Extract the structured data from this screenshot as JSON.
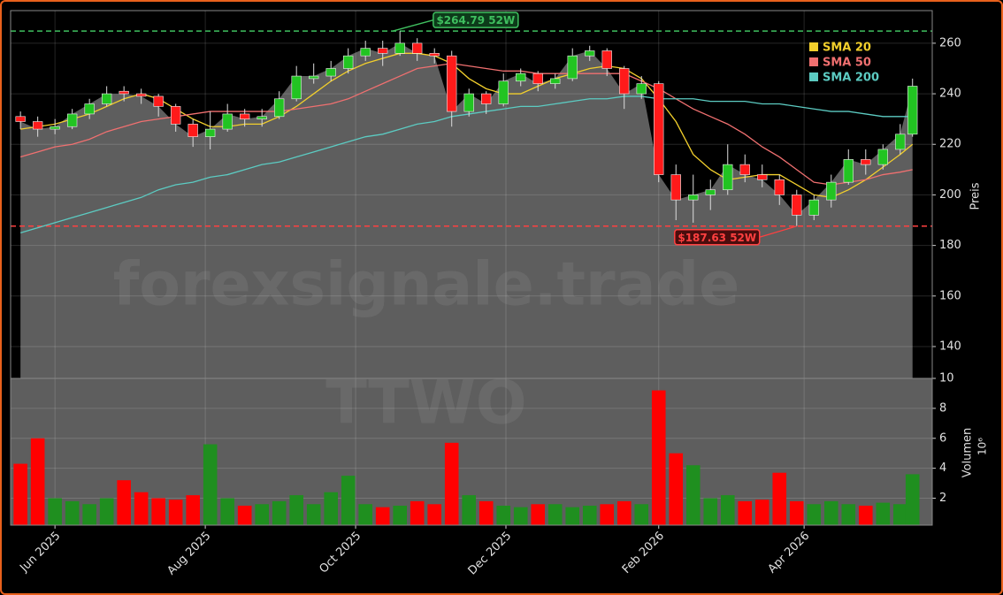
{
  "chart_data": {
    "type": "candlestick",
    "watermark": "forexsignale.trade",
    "symbol": "TTWO",
    "y_label": "Preis",
    "volume_label": "Volumen",
    "volume_scale": "10⁶",
    "x": [
      -14,
      -7,
      0,
      7,
      14,
      21,
      28,
      35,
      42,
      49,
      56,
      63,
      70,
      77,
      84,
      91,
      98,
      105,
      112,
      119,
      126,
      133,
      140,
      147,
      154,
      161,
      168,
      175,
      182,
      189,
      196,
      203,
      210,
      217,
      224,
      231,
      238,
      245,
      252,
      259,
      266,
      273,
      280,
      287,
      294,
      301,
      308,
      315,
      322,
      329,
      336,
      343,
      348
    ],
    "open": [
      231,
      229,
      226,
      227,
      232,
      236,
      241,
      240,
      239,
      235,
      228,
      223,
      226,
      232,
      230,
      231,
      238,
      246,
      247,
      250,
      255,
      258,
      256,
      260,
      256,
      255,
      233,
      240,
      236,
      245,
      248,
      244,
      246,
      255,
      257,
      250,
      240,
      244,
      208,
      198,
      200,
      202,
      212,
      208,
      206,
      200,
      192,
      198,
      205,
      214,
      212,
      218,
      224
    ],
    "high": [
      233,
      231,
      230,
      234,
      238,
      243,
      243,
      242,
      240,
      236,
      230,
      233,
      236,
      234,
      234,
      241,
      251,
      252,
      253,
      258,
      261,
      261,
      264.79,
      262,
      258,
      257,
      242,
      241,
      248,
      250,
      249,
      248,
      258,
      259,
      258,
      251,
      247,
      245,
      212,
      208,
      206,
      220,
      216,
      212,
      208,
      202,
      200,
      208,
      218,
      218,
      220,
      228,
      246
    ],
    "low": [
      226,
      223,
      224,
      226,
      230,
      235,
      237,
      236,
      231,
      225,
      219,
      218,
      225,
      227,
      227,
      230,
      237,
      244,
      245,
      248,
      253,
      251,
      255,
      253,
      252,
      227,
      231,
      232,
      235,
      243,
      241,
      242,
      245,
      253,
      247,
      234,
      238,
      205,
      190,
      189,
      194,
      200,
      205,
      203,
      196,
      187.63,
      190,
      195,
      204,
      208,
      210,
      216,
      223
    ],
    "close": [
      229,
      226,
      227,
      232,
      236,
      240,
      240,
      239,
      235,
      228,
      223,
      226,
      232,
      230,
      231,
      238,
      247,
      247,
      250,
      255,
      258,
      256,
      260,
      256,
      255,
      233,
      240,
      236,
      245,
      248,
      244,
      246,
      255,
      257,
      250,
      240,
      244,
      208,
      198,
      200,
      202,
      212,
      208,
      206,
      200,
      192,
      198,
      205,
      214,
      212,
      218,
      224,
      243
    ],
    "volume": [
      4.3,
      6.0,
      2.0,
      1.8,
      1.6,
      2.0,
      3.2,
      2.4,
      2.0,
      1.9,
      2.2,
      5.6,
      2.0,
      1.5,
      1.6,
      1.8,
      2.2,
      1.6,
      2.4,
      3.5,
      1.6,
      1.4,
      1.5,
      1.8,
      1.6,
      5.7,
      2.2,
      1.8,
      1.5,
      1.4,
      1.6,
      1.6,
      1.4,
      1.5,
      1.6,
      1.8,
      1.6,
      9.2,
      5.0,
      4.2,
      2.0,
      2.2,
      1.8,
      1.9,
      3.7,
      1.8,
      1.6,
      1.8,
      1.6,
      1.5,
      1.7,
      1.6,
      3.6
    ],
    "up_color": "#22c422",
    "down_color": "#ff1a1a",
    "volume_up_color": "#1f8f1f",
    "volume_down_color": "#ff0000",
    "area_color": "#5e5e5e",
    "series": [
      {
        "name": "SMA 20",
        "color": "#f2cf2c",
        "values": [
          226,
          227,
          228,
          230,
          232,
          235,
          238,
          240,
          238,
          234,
          230,
          227,
          227,
          228,
          228,
          231,
          235,
          240,
          245,
          249,
          252,
          254,
          256,
          256,
          255,
          252,
          246,
          242,
          240,
          240,
          243,
          246,
          248,
          250,
          251,
          250,
          246,
          238,
          229,
          216,
          210,
          206,
          207,
          208,
          208,
          204,
          200,
          199,
          202,
          206,
          211,
          216,
          220
        ]
      },
      {
        "name": "SMA 50",
        "color": "#f07070",
        "values": [
          215,
          217,
          219,
          220,
          222,
          225,
          227,
          229,
          230,
          231,
          232,
          233,
          233,
          233,
          233,
          233,
          234,
          235,
          236,
          238,
          241,
          244,
          247,
          250,
          251,
          252,
          251,
          250,
          249,
          249,
          248,
          248,
          248,
          248,
          248,
          248,
          245,
          242,
          238,
          234,
          231,
          228,
          224,
          219,
          215,
          210,
          205,
          204,
          205,
          206,
          208,
          209,
          210
        ]
      },
      {
        "name": "SMA 200",
        "color": "#5ccbc2",
        "values": [
          185,
          187,
          189,
          191,
          193,
          195,
          197,
          199,
          202,
          204,
          205,
          207,
          208,
          210,
          212,
          213,
          215,
          217,
          219,
          221,
          223,
          224,
          226,
          228,
          229,
          231,
          232,
          233,
          234,
          235,
          235,
          236,
          237,
          238,
          238,
          239,
          239,
          238,
          238,
          238,
          237,
          237,
          237,
          236,
          236,
          235,
          234,
          233,
          233,
          232,
          231,
          231,
          231
        ]
      }
    ],
    "annotations": [
      {
        "text": "$264.79 52W",
        "value": 264.79,
        "x": 137,
        "color": "#3fbf5f"
      },
      {
        "text": "$187.63 52W",
        "value": 187.63,
        "x": 301,
        "color": "#ff4040"
      }
    ],
    "xlim": [
      -18,
      356
    ],
    "xticks": [
      {
        "value": 0,
        "label": "Jun 2025"
      },
      {
        "value": 61,
        "label": "Aug 2025"
      },
      {
        "value": 122,
        "label": "Oct 2025"
      },
      {
        "value": 183,
        "label": "Dec 2025"
      },
      {
        "value": 245,
        "label": "Feb 2026"
      },
      {
        "value": 304,
        "label": "Apr 2026"
      }
    ],
    "ylim": [
      127.4,
      272.9
    ],
    "yticks": [
      140,
      160,
      180,
      200,
      220,
      240,
      260
    ],
    "volume_ylim": [
      0.2,
      10
    ],
    "volume_yticks": [
      2,
      4,
      6,
      8,
      10
    ],
    "grid": true
  }
}
